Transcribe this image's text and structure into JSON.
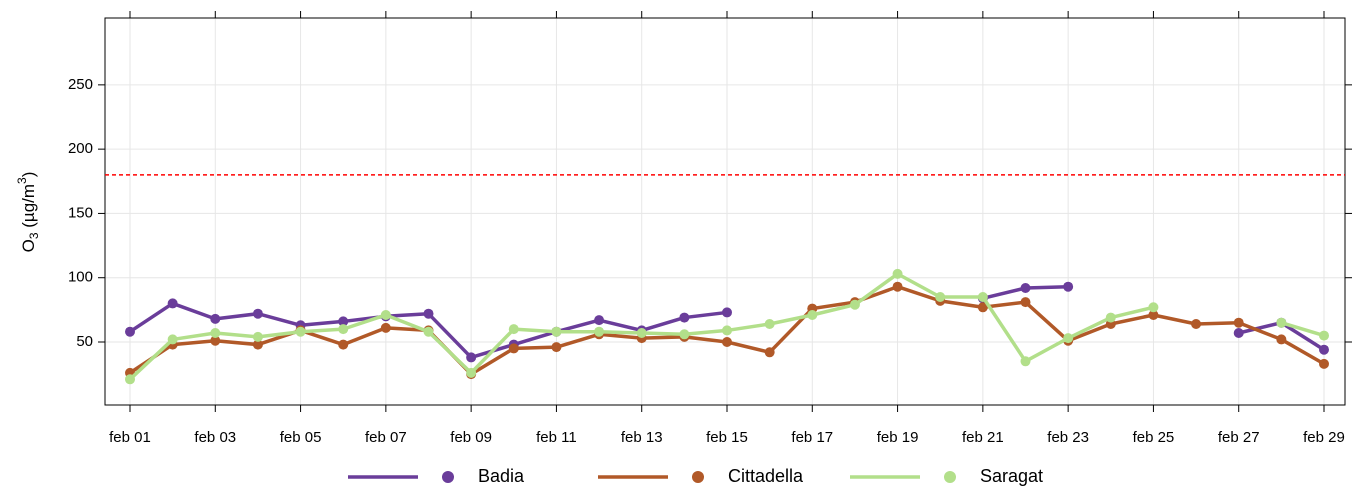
{
  "chart_data": {
    "type": "line",
    "ylabel": {
      "main": "O",
      "sub": "3",
      "mid": " (µg/m",
      "sup": "3",
      "end": ")"
    },
    "categories": [
      "feb 01",
      null,
      "feb 03",
      null,
      "feb 05",
      null,
      "feb 07",
      null,
      "feb 09",
      null,
      "feb 11",
      null,
      "feb 13",
      null,
      "feb 15",
      null,
      "feb 17",
      null,
      "feb 19",
      null,
      "feb 21",
      null,
      "feb 23",
      null,
      "feb 25",
      null,
      "feb 27",
      null,
      "feb 29"
    ],
    "ylim": [
      1,
      302
    ],
    "yticks": [
      50,
      100,
      150,
      200,
      250
    ],
    "grid": true,
    "reference_line": {
      "value": 180,
      "color": "#ff0000"
    },
    "series": [
      {
        "name": "Badia",
        "color": "#6a3d9a",
        "values": [
          58,
          80,
          68,
          72,
          63,
          66,
          70,
          72,
          38,
          48,
          58,
          67,
          59,
          69,
          73,
          null,
          null,
          null,
          null,
          null,
          84,
          92,
          93,
          null,
          null,
          null,
          57,
          65,
          44
        ]
      },
      {
        "name": "Cittadella",
        "color": "#b15928",
        "values": [
          26,
          48,
          51,
          48,
          59,
          48,
          61,
          59,
          25,
          45,
          46,
          56,
          53,
          54,
          50,
          42,
          76,
          81,
          93,
          82,
          77,
          81,
          51,
          64,
          71,
          64,
          65,
          52,
          33
        ]
      },
      {
        "name": "Saragat",
        "color": "#b2df8a",
        "values": [
          21,
          52,
          57,
          54,
          58,
          60,
          71,
          58,
          26,
          60,
          58,
          58,
          57,
          56,
          59,
          64,
          71,
          79,
          103,
          85,
          85,
          35,
          53,
          69,
          77,
          null,
          null,
          65,
          55
        ]
      }
    ]
  }
}
